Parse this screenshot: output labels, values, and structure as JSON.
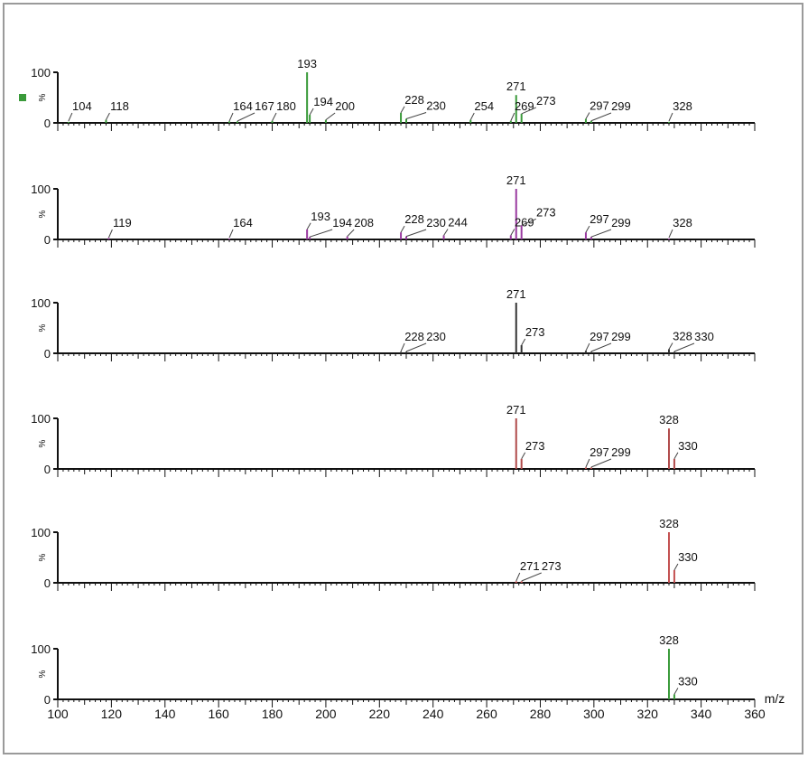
{
  "chart_data": [
    {
      "type": "bar",
      "color": "#3a9a3a",
      "marker": true,
      "peaks": [
        {
          "mz": 104,
          "y": 2,
          "label": "104"
        },
        {
          "mz": 118,
          "y": 6,
          "label": "118"
        },
        {
          "mz": 164,
          "y": 3,
          "label": "164"
        },
        {
          "mz": 167,
          "y": 3,
          "label": "167"
        },
        {
          "mz": 180,
          "y": 4,
          "label": "180"
        },
        {
          "mz": 193,
          "y": 100,
          "label": "193"
        },
        {
          "mz": 194,
          "y": 16,
          "label": "194"
        },
        {
          "mz": 200,
          "y": 6,
          "label": "200"
        },
        {
          "mz": 228,
          "y": 20,
          "label": "228"
        },
        {
          "mz": 230,
          "y": 8,
          "label": "230"
        },
        {
          "mz": 254,
          "y": 6,
          "label": "254"
        },
        {
          "mz": 269,
          "y": 4,
          "label": "269"
        },
        {
          "mz": 271,
          "y": 55,
          "label": "271"
        },
        {
          "mz": 273,
          "y": 18,
          "label": "273"
        },
        {
          "mz": 297,
          "y": 8,
          "label": "297"
        },
        {
          "mz": 299,
          "y": 4,
          "label": "299"
        },
        {
          "mz": 328,
          "y": 2,
          "label": "328"
        }
      ]
    },
    {
      "type": "bar",
      "color": "#9a3aa0",
      "peaks": [
        {
          "mz": 119,
          "y": 3,
          "label": "119"
        },
        {
          "mz": 164,
          "y": 2,
          "label": "164"
        },
        {
          "mz": 193,
          "y": 20,
          "label": "193"
        },
        {
          "mz": 194,
          "y": 5,
          "label": "194"
        },
        {
          "mz": 208,
          "y": 6,
          "label": "208"
        },
        {
          "mz": 228,
          "y": 14,
          "label": "228"
        },
        {
          "mz": 230,
          "y": 6,
          "label": "230"
        },
        {
          "mz": 244,
          "y": 8,
          "label": "244"
        },
        {
          "mz": 269,
          "y": 8,
          "label": "269"
        },
        {
          "mz": 271,
          "y": 100,
          "label": "271"
        },
        {
          "mz": 273,
          "y": 28,
          "label": "273"
        },
        {
          "mz": 297,
          "y": 14,
          "label": "297"
        },
        {
          "mz": 299,
          "y": 5,
          "label": "299"
        },
        {
          "mz": 328,
          "y": 2,
          "label": "328"
        }
      ]
    },
    {
      "type": "bar",
      "color": "#333333",
      "peaks": [
        {
          "mz": 228,
          "y": 3,
          "label": "228"
        },
        {
          "mz": 230,
          "y": 3,
          "label": "230"
        },
        {
          "mz": 271,
          "y": 100,
          "label": "271"
        },
        {
          "mz": 273,
          "y": 16,
          "label": "273"
        },
        {
          "mz": 297,
          "y": 5,
          "label": "297"
        },
        {
          "mz": 299,
          "y": 3,
          "label": "299"
        },
        {
          "mz": 328,
          "y": 8,
          "label": "328"
        },
        {
          "mz": 330,
          "y": 3,
          "label": "330"
        }
      ]
    },
    {
      "type": "bar",
      "color": "#b04a4a",
      "peaks": [
        {
          "mz": 271,
          "y": 100,
          "label": "271"
        },
        {
          "mz": 273,
          "y": 20,
          "label": "273"
        },
        {
          "mz": 297,
          "y": 3,
          "label": "297"
        },
        {
          "mz": 299,
          "y": 3,
          "label": "299"
        },
        {
          "mz": 328,
          "y": 80,
          "label": "328"
        },
        {
          "mz": 330,
          "y": 20,
          "label": "330"
        }
      ]
    },
    {
      "type": "bar",
      "color": "#c45050",
      "peaks": [
        {
          "mz": 271,
          "y": 3,
          "label": "271"
        },
        {
          "mz": 273,
          "y": 3,
          "label": "273"
        },
        {
          "mz": 328,
          "y": 100,
          "label": "328"
        },
        {
          "mz": 330,
          "y": 25,
          "label": "330"
        }
      ]
    },
    {
      "type": "bar",
      "color": "#3a9a3a",
      "peaks": [
        {
          "mz": 328,
          "y": 100,
          "label": "328"
        },
        {
          "mz": 330,
          "y": 10,
          "label": "330"
        }
      ]
    }
  ],
  "axes": {
    "ylabel": "%",
    "ytop": "100",
    "ybottom": "0",
    "xlabel": "m/z",
    "xlim": [
      100,
      360
    ],
    "xticks": [
      "100",
      "120",
      "140",
      "160",
      "180",
      "200",
      "220",
      "240",
      "260",
      "280",
      "300",
      "320",
      "340",
      "360"
    ]
  }
}
